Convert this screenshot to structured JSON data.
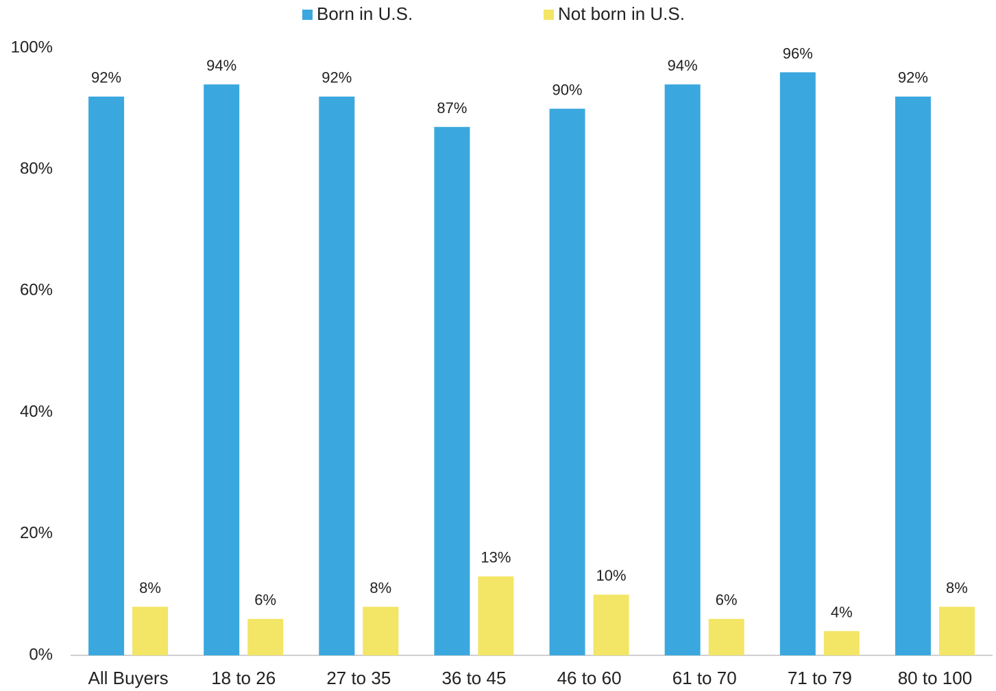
{
  "chart_data": {
    "type": "bar",
    "categories": [
      "All Buyers",
      "18 to 26",
      "27 to 35",
      "36 to 45",
      "46 to 60",
      "61 to 70",
      "71 to 79",
      "80 to 100"
    ],
    "series": [
      {
        "name": "Born in U.S.",
        "color": "#3aa8de",
        "values": [
          92,
          94,
          92,
          87,
          90,
          94,
          96,
          92
        ],
        "value_labels": [
          "92%",
          "94%",
          "92%",
          "87%",
          "90%",
          "94%",
          "96%",
          "92%"
        ]
      },
      {
        "name": "Not born in U.S.",
        "color": "#f3e565",
        "values": [
          8,
          6,
          8,
          13,
          10,
          6,
          4,
          8
        ],
        "value_labels": [
          "8%",
          "6%",
          "8%",
          "13%",
          "10%",
          "6%",
          "4%",
          "8%"
        ]
      }
    ],
    "ylim": [
      0,
      100
    ],
    "yticks": [
      {
        "value": 0,
        "label": "0%"
      },
      {
        "value": 20,
        "label": "20%"
      },
      {
        "value": 40,
        "label": "40%"
      },
      {
        "value": 60,
        "label": "60%"
      },
      {
        "value": 80,
        "label": "80%"
      },
      {
        "value": 100,
        "label": "100%"
      }
    ],
    "grid": false,
    "legend": "top"
  }
}
